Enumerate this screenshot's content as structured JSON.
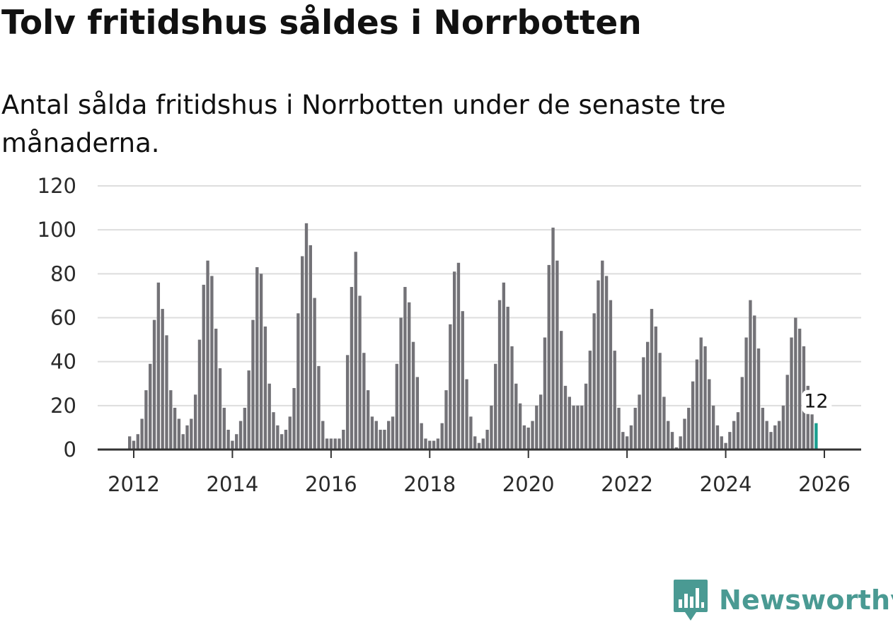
{
  "title": "Tolv fritidshus såldes i Norrbotten",
  "subtitle": "Antal sålda fritidshus i Norrbotten under de senaste tre månaderna.",
  "brand": "Newsworthy",
  "colors": {
    "bar": "#737277",
    "highlight": "#1a9e8f",
    "grid": "#dddddd",
    "axis": "#333333",
    "brand": "#4a9a93"
  },
  "chart_data": {
    "type": "bar",
    "x_ticks": [
      "2012",
      "2014",
      "2016",
      "2018",
      "2020",
      "2022",
      "2024",
      "2026"
    ],
    "y_ticks": [
      "0",
      "20",
      "40",
      "60",
      "80",
      "100",
      "120"
    ],
    "ylim": [
      0,
      120
    ],
    "grid": true,
    "start": "2011-12",
    "values": [
      6,
      4,
      7,
      14,
      27,
      39,
      59,
      76,
      64,
      52,
      27,
      19,
      14,
      7,
      11,
      14,
      25,
      50,
      75,
      86,
      79,
      55,
      37,
      19,
      9,
      4,
      7,
      13,
      19,
      36,
      59,
      83,
      80,
      56,
      30,
      17,
      11,
      7,
      9,
      15,
      28,
      62,
      88,
      103,
      93,
      69,
      38,
      13,
      5,
      5,
      5,
      5,
      9,
      43,
      74,
      90,
      70,
      44,
      27,
      15,
      13,
      9,
      9,
      13,
      15,
      39,
      60,
      74,
      67,
      49,
      33,
      12,
      5,
      4,
      4,
      5,
      12,
      27,
      57,
      81,
      85,
      63,
      32,
      15,
      6,
      3,
      5,
      9,
      20,
      39,
      68,
      76,
      65,
      47,
      30,
      21,
      11,
      10,
      13,
      20,
      25,
      51,
      84,
      101,
      86,
      54,
      29,
      24,
      20,
      20,
      20,
      30,
      45,
      62,
      77,
      86,
      79,
      68,
      45,
      19,
      8,
      6,
      11,
      19,
      25,
      42,
      49,
      64,
      56,
      44,
      24,
      13,
      8,
      1,
      6,
      14,
      19,
      31,
      41,
      51,
      47,
      32,
      20,
      11,
      6,
      3,
      8,
      13,
      17,
      33,
      51,
      68,
      61,
      46,
      19,
      13,
      8,
      11,
      13,
      20,
      34,
      51,
      60,
      55,
      47,
      29,
      16,
      12
    ],
    "highlight_last": true,
    "highlight_label": "12"
  }
}
